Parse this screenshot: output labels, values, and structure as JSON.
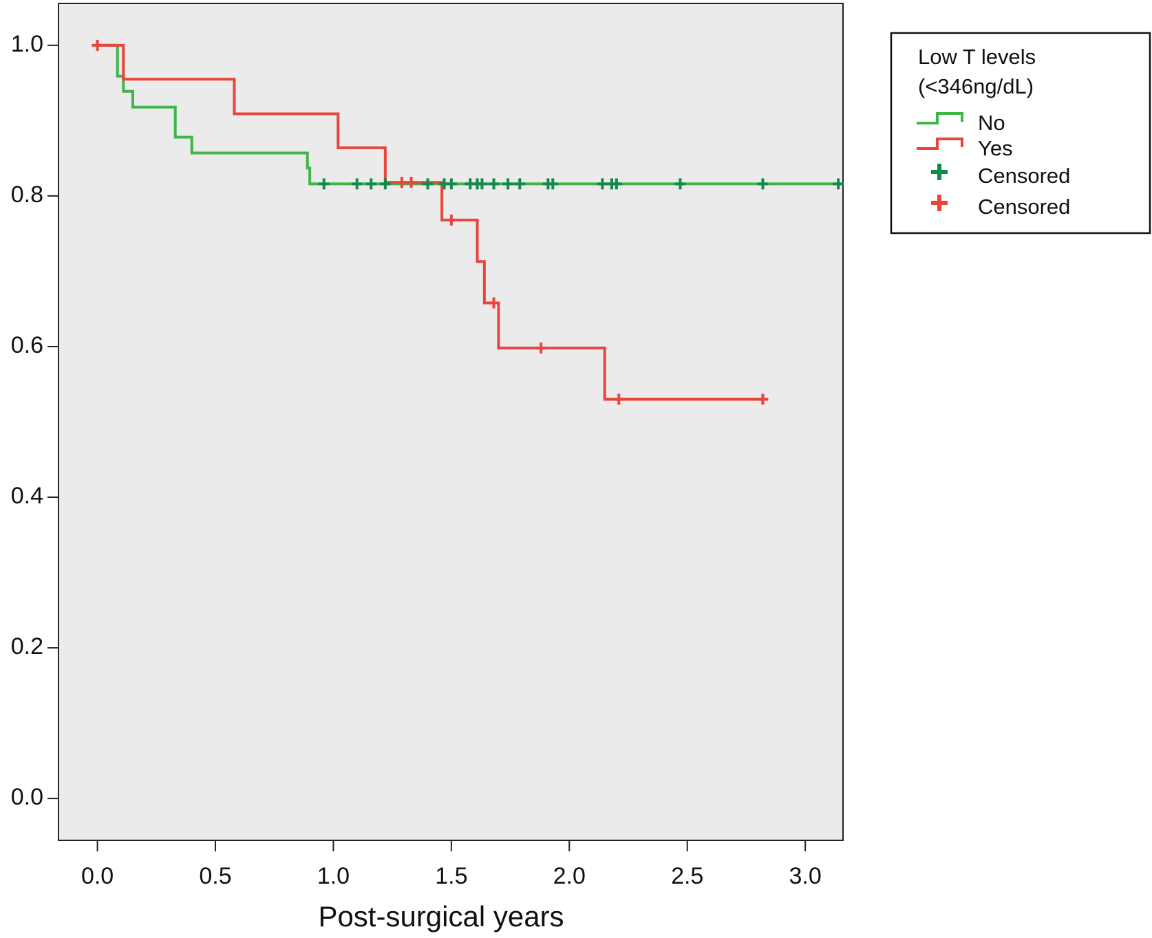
{
  "chart_data": {
    "type": "line",
    "x_label": "Post-surgical years",
    "legend_title": [
      "Low T levels",
      "(<346ng/dL)"
    ],
    "legend_position": "outside-right",
    "grid": false,
    "plot_background": "#ebebeb",
    "xlim": [
      -0.165,
      3.16
    ],
    "ylim": [
      -0.0556,
      1.0556
    ],
    "xticks": [
      {
        "value": 0,
        "label": "0.0"
      },
      {
        "value": 0.5,
        "label": "0.5"
      },
      {
        "value": 1,
        "label": "1.0"
      },
      {
        "value": 1.5,
        "label": "1.5"
      },
      {
        "value": 2,
        "label": "2.0"
      },
      {
        "value": 2.5,
        "label": "2.5"
      },
      {
        "value": 3,
        "label": "3.0"
      }
    ],
    "yticks": [
      {
        "value": 0,
        "label": "0.0"
      },
      {
        "value": 0.2,
        "label": "0.2"
      },
      {
        "value": 0.4,
        "label": "0.4"
      },
      {
        "value": 0.6,
        "label": "0.6"
      },
      {
        "value": 0.8,
        "label": "0.8"
      },
      {
        "value": 1,
        "label": "1.0"
      }
    ],
    "series": [
      {
        "name": "No",
        "color": "#3fb54a",
        "marker": "step",
        "x": [
          0,
          0.085,
          0.11,
          0.15,
          0.33,
          0.4,
          0.89,
          0.9,
          3.15
        ],
        "values": [
          1.0,
          0.959,
          0.939,
          0.918,
          0.878,
          0.857,
          0.837,
          0.816,
          0.816
        ]
      },
      {
        "name": "Yes",
        "color": "#e8453c",
        "marker": "step",
        "x": [
          0,
          0.11,
          0.58,
          1.02,
          1.22,
          1.46,
          1.61,
          1.64,
          1.7,
          2.15,
          2.83
        ],
        "values": [
          1.0,
          0.955,
          0.909,
          0.864,
          0.818,
          0.768,
          0.713,
          0.658,
          0.598,
          0.53,
          0.53
        ]
      },
      {
        "name": "Censored",
        "color": "#138a4a",
        "marker": "plus",
        "x": [
          0.96,
          1.1,
          1.16,
          1.22,
          1.4,
          1.47,
          1.5,
          1.58,
          1.61,
          1.63,
          1.68,
          1.74,
          1.79,
          1.91,
          1.93,
          2.14,
          2.18,
          2.2,
          2.47,
          2.82,
          3.14
        ],
        "values": [
          0.816,
          0.816,
          0.816,
          0.816,
          0.816,
          0.816,
          0.816,
          0.816,
          0.816,
          0.816,
          0.816,
          0.816,
          0.816,
          0.816,
          0.816,
          0.816,
          0.816,
          0.816,
          0.816,
          0.816,
          0.816
        ]
      },
      {
        "name": "Censored",
        "color": "#e8453c",
        "marker": "plus",
        "x": [
          0,
          1.29,
          1.33,
          1.5,
          1.68,
          1.88,
          2.21,
          2.82
        ],
        "values": [
          1.0,
          0.818,
          0.818,
          0.768,
          0.658,
          0.598,
          0.53,
          0.53
        ]
      }
    ]
  }
}
